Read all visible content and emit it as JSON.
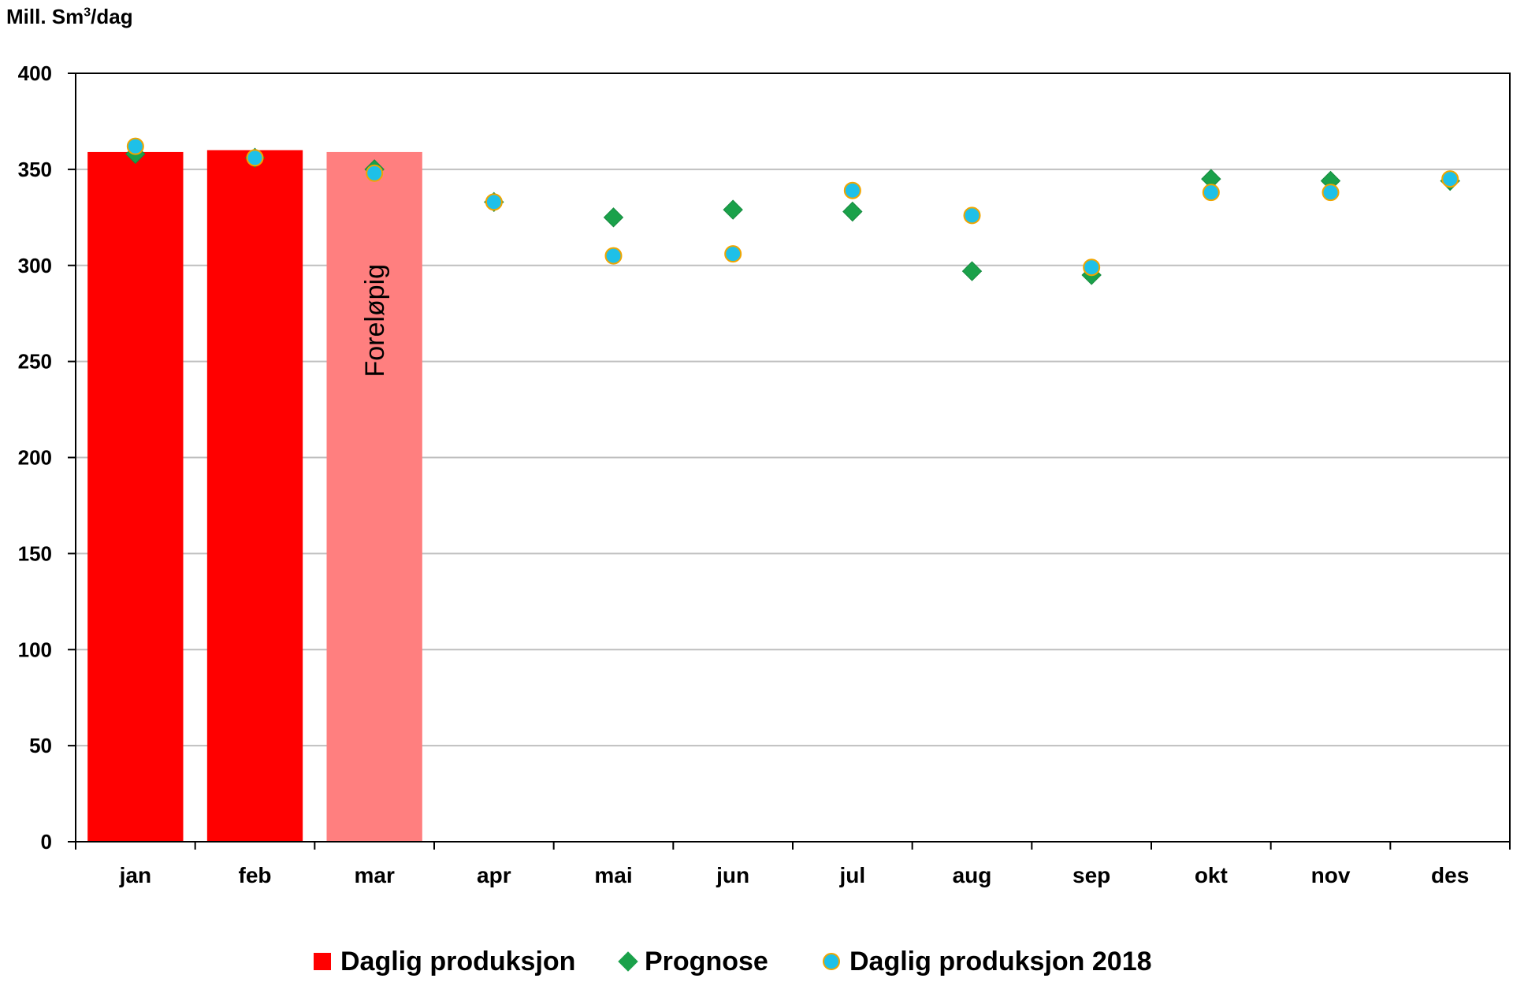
{
  "chart_data": {
    "type": "bar",
    "ylabel_prefix": "Mill. Sm",
    "ylabel_sup": "3",
    "ylabel_suffix": "/dag",
    "ylim": [
      0,
      400
    ],
    "yticks": [
      0,
      50,
      100,
      150,
      200,
      250,
      300,
      350,
      400
    ],
    "grid": true,
    "categories": [
      "jan",
      "feb",
      "mar",
      "apr",
      "mai",
      "jun",
      "jul",
      "aug",
      "sep",
      "okt",
      "nov",
      "des"
    ],
    "series": [
      {
        "name": "Daglig produksjon",
        "kind": "bar",
        "color": "#ff0000",
        "preliminary_color": "#ff7f7f",
        "values": [
          359,
          360,
          359,
          null,
          null,
          null,
          null,
          null,
          null,
          null,
          null,
          null
        ],
        "preliminary_index": 2
      },
      {
        "name": "Prognose",
        "kind": "diamond",
        "color": "#1aa14a",
        "values": [
          358,
          356,
          350,
          333,
          325,
          329,
          328,
          297,
          295,
          345,
          344,
          344
        ]
      },
      {
        "name": "Daglig produksjon 2018",
        "kind": "circle",
        "color": "#1ec0e8",
        "edge": "#f0a500",
        "values": [
          362,
          356,
          348,
          333,
          305,
          306,
          339,
          326,
          299,
          338,
          338,
          345
        ]
      }
    ],
    "annotations": [
      {
        "category": "mar",
        "text": "Foreløpig"
      }
    ],
    "legend_placement": "bottom"
  }
}
